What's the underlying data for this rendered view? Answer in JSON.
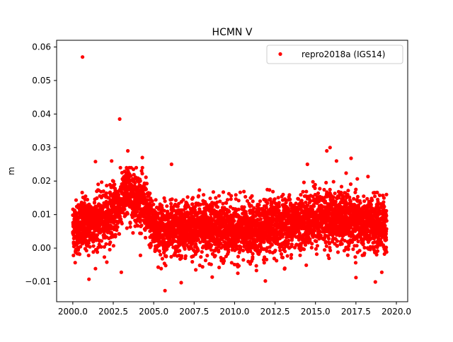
{
  "chart_data": {
    "type": "scatter",
    "title": "HCMN V",
    "xlabel": "",
    "ylabel": "m",
    "xlim": [
      1999.0,
      2020.7
    ],
    "ylim": [
      -0.016,
      0.062
    ],
    "xticks": [
      2000.0,
      2002.5,
      2005.0,
      2007.5,
      2010.0,
      2012.5,
      2015.0,
      2017.5,
      2020.0
    ],
    "xtick_labels": [
      "2000.0",
      "2002.5",
      "2005.0",
      "2007.5",
      "2010.0",
      "2012.5",
      "2015.0",
      "2017.5",
      "2020.0"
    ],
    "yticks": [
      -0.01,
      0.0,
      0.01,
      0.02,
      0.03,
      0.04,
      0.05,
      0.06
    ],
    "ytick_labels": [
      "−0.01",
      "0.00",
      "0.01",
      "0.02",
      "0.03",
      "0.04",
      "0.05",
      "0.06"
    ],
    "grid": false,
    "legend_position": "top-right",
    "series": [
      {
        "name": "repro2018a (IGS14)",
        "color": "#ff0000",
        "marker": "circle",
        "x_start": 2000.0,
        "x_end": 2019.4,
        "baseline_trend": [
          [
            2000.0,
            0.006
          ],
          [
            2001.0,
            0.007
          ],
          [
            2002.0,
            0.009
          ],
          [
            2002.8,
            0.012
          ],
          [
            2003.4,
            0.017
          ],
          [
            2004.0,
            0.015
          ],
          [
            2004.5,
            0.012
          ],
          [
            2005.0,
            0.006
          ],
          [
            2006.0,
            0.005
          ],
          [
            2007.0,
            0.006
          ],
          [
            2008.0,
            0.007
          ],
          [
            2009.0,
            0.006
          ],
          [
            2010.0,
            0.005
          ],
          [
            2011.0,
            0.005
          ],
          [
            2012.0,
            0.006
          ],
          [
            2013.0,
            0.007
          ],
          [
            2014.0,
            0.008
          ],
          [
            2015.0,
            0.009
          ],
          [
            2016.0,
            0.009
          ],
          [
            2017.0,
            0.008
          ],
          [
            2018.0,
            0.007
          ],
          [
            2019.4,
            0.007
          ]
        ],
        "typical_spread": 0.004,
        "notable_points": [
          [
            2000.6,
            0.057
          ],
          [
            2002.9,
            0.0385
          ],
          [
            2001.4,
            0.0258
          ],
          [
            2003.4,
            0.029
          ],
          [
            2004.3,
            0.027
          ],
          [
            2006.1,
            0.025
          ],
          [
            2015.9,
            0.03
          ],
          [
            2015.7,
            0.029
          ],
          [
            2017.2,
            0.0268
          ],
          [
            2016.3,
            0.026
          ],
          [
            2014.5,
            0.025
          ],
          [
            2002.4,
            0.026
          ],
          [
            2005.7,
            -0.0127
          ],
          [
            2006.7,
            -0.0103
          ],
          [
            2011.9,
            -0.0098
          ],
          [
            2018.7,
            -0.0101
          ],
          [
            2001.0,
            -0.0093
          ],
          [
            2003.0,
            -0.0072
          ],
          [
            2010.2,
            -0.0075
          ],
          [
            2019.1,
            -0.0072
          ],
          [
            2017.5,
            -0.0088
          ],
          [
            2007.6,
            -0.0065
          ],
          [
            2009.3,
            -0.0045
          ],
          [
            2013.1,
            -0.006
          ]
        ]
      }
    ]
  }
}
